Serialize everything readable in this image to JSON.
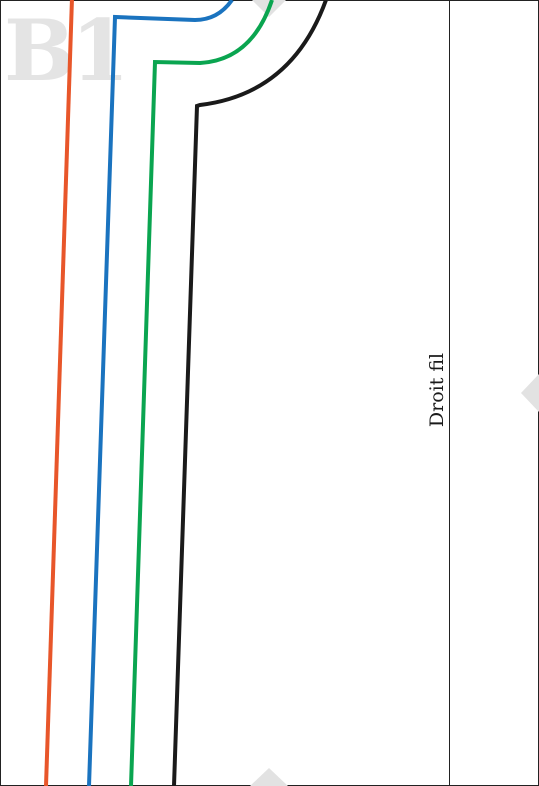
{
  "page_label": "B1",
  "grain_line": {
    "label": "Droit fil"
  },
  "colors": {
    "background": "#ffffff",
    "border": "#222222",
    "page_label": "#e4e4e4",
    "assembly_marker": "#e2e2e2",
    "size_lines": [
      "#e8562a",
      "#1a73bf",
      "#0aa550",
      "#1a1a1a"
    ]
  },
  "size_lines": [
    {
      "name": "size-line-orange",
      "color": "#e8562a"
    },
    {
      "name": "size-line-blue",
      "color": "#1a73bf"
    },
    {
      "name": "size-line-green",
      "color": "#0aa550"
    },
    {
      "name": "size-line-black",
      "color": "#1a1a1a"
    }
  ]
}
